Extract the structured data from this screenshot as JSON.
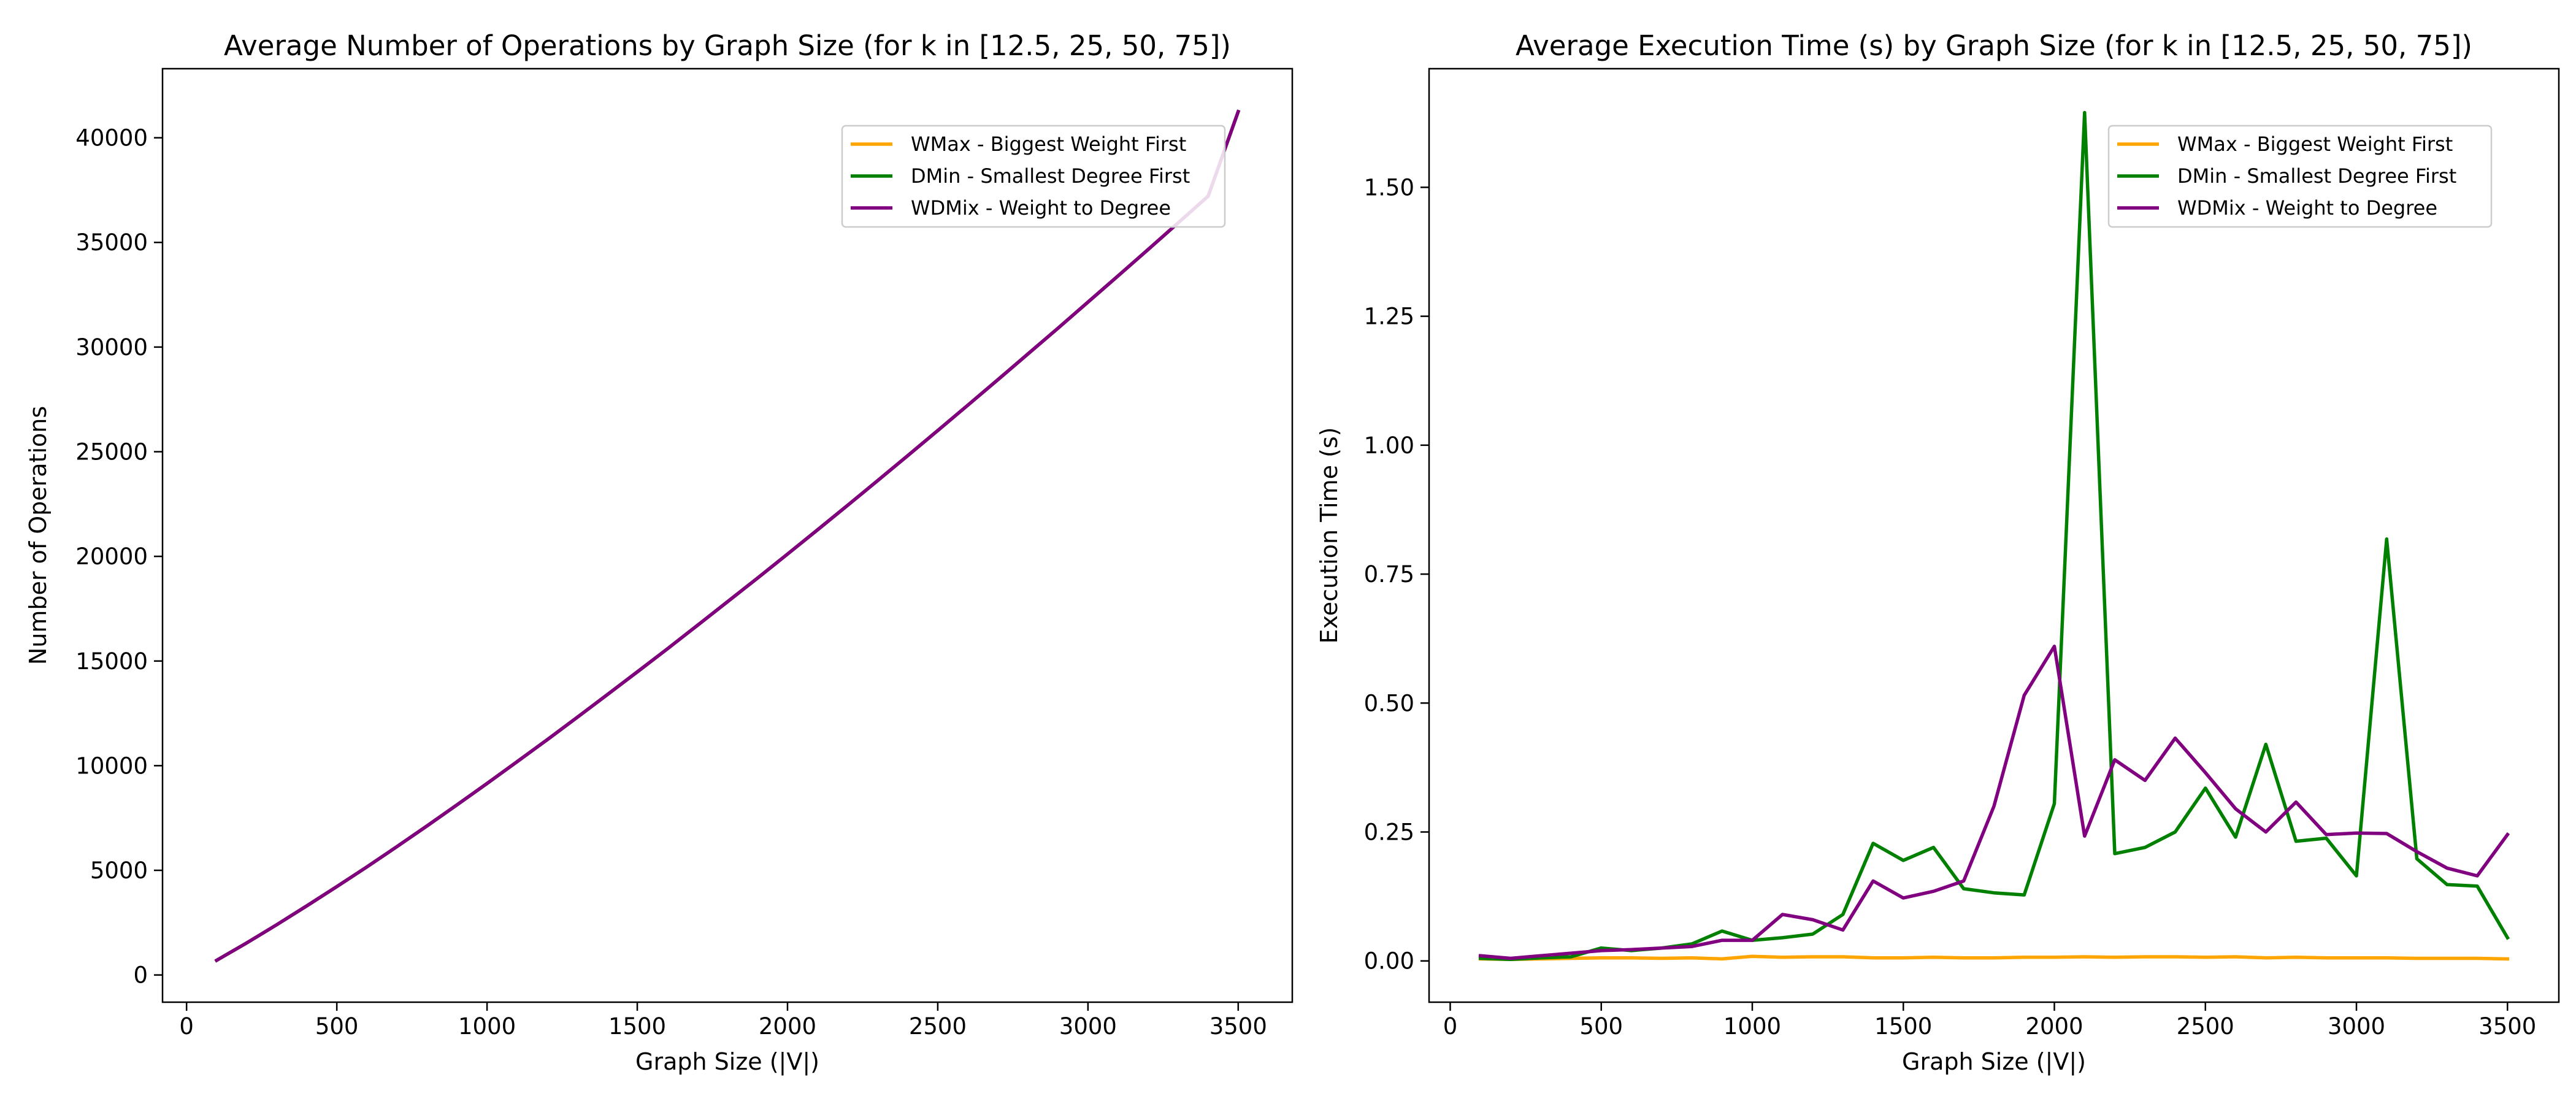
{
  "chart_data": [
    {
      "type": "line",
      "title": "Average Number of Operations by Graph Size (for k in [12.5, 25, 50, 75])",
      "xlabel": "Graph Size (|V|)",
      "ylabel": "Number of Operations",
      "xlim": [
        -80,
        3680
      ],
      "ylim": [
        -1300,
        43300
      ],
      "xticks": [
        0,
        500,
        1000,
        1500,
        2000,
        2500,
        3000,
        3500
      ],
      "yticks": [
        0,
        5000,
        10000,
        15000,
        20000,
        25000,
        30000,
        35000,
        40000
      ],
      "grid": false,
      "legend_position": "upper-right",
      "x": [
        100,
        200,
        300,
        400,
        500,
        600,
        700,
        800,
        900,
        1000,
        1100,
        1200,
        1300,
        1400,
        1500,
        1600,
        1700,
        1800,
        1900,
        2000,
        2100,
        2200,
        2300,
        2400,
        2500,
        2600,
        2700,
        2800,
        2900,
        3000,
        3100,
        3200,
        3300,
        3400,
        3500
      ],
      "series": [
        {
          "name": "WMax - Biggest Weight First",
          "color": "#ffa500",
          "values": [
            700,
            1530,
            2400,
            3300,
            4220,
            5160,
            6130,
            7120,
            8130,
            9150,
            10190,
            11240,
            12310,
            13390,
            14480,
            15580,
            16700,
            17830,
            18960,
            20110,
            21270,
            22440,
            23620,
            24810,
            26010,
            27220,
            28440,
            29670,
            30900,
            32150,
            33400,
            34660,
            35930,
            37210,
            41250
          ]
        },
        {
          "name": "DMin - Smallest Degree First",
          "color": "#008000",
          "values": [
            700,
            1530,
            2400,
            3300,
            4220,
            5160,
            6130,
            7120,
            8130,
            9150,
            10190,
            11240,
            12310,
            13390,
            14480,
            15580,
            16700,
            17830,
            18960,
            20110,
            21270,
            22440,
            23620,
            24810,
            26010,
            27220,
            28440,
            29670,
            30900,
            32150,
            33400,
            34660,
            35930,
            37210,
            41250
          ]
        },
        {
          "name": "WDMix - Weight to Degree",
          "color": "#800080",
          "values": [
            700,
            1530,
            2400,
            3300,
            4220,
            5160,
            6130,
            7120,
            8130,
            9150,
            10190,
            11240,
            12310,
            13390,
            14480,
            15580,
            16700,
            17830,
            18960,
            20110,
            21270,
            22440,
            23620,
            24810,
            26010,
            27220,
            28440,
            29670,
            30900,
            32150,
            33400,
            34660,
            35930,
            37210,
            41250
          ]
        }
      ]
    },
    {
      "type": "line",
      "title": "Average Execution Time (s) by Graph Size (for k in [12.5, 25, 50, 75])",
      "xlabel": "Graph Size (|V|)",
      "ylabel": "Execution Time (s)",
      "xlim": [
        -70,
        3670
      ],
      "ylim": [
        -0.08,
        1.73
      ],
      "xticks": [
        0,
        500,
        1000,
        1500,
        2000,
        2500,
        3000,
        3500
      ],
      "yticks": [
        0.0,
        0.25,
        0.5,
        0.75,
        1.0,
        1.25,
        1.5
      ],
      "ytick_labels": [
        "0.00",
        "0.25",
        "0.50",
        "0.75",
        "1.00",
        "1.25",
        "1.50"
      ],
      "grid": false,
      "legend_position": "upper-right",
      "x": [
        100,
        200,
        300,
        400,
        500,
        600,
        700,
        800,
        900,
        1000,
        1100,
        1200,
        1300,
        1400,
        1500,
        1600,
        1700,
        1800,
        1900,
        2000,
        2100,
        2200,
        2300,
        2400,
        2500,
        2600,
        2700,
        2800,
        2900,
        3000,
        3100,
        3200,
        3300,
        3400,
        3500
      ],
      "series": [
        {
          "name": "WMax - Biggest Weight First",
          "color": "#ffa500",
          "values": [
            0.004,
            0.003,
            0.004,
            0.005,
            0.006,
            0.006,
            0.005,
            0.006,
            0.004,
            0.009,
            0.007,
            0.008,
            0.008,
            0.006,
            0.006,
            0.007,
            0.006,
            0.006,
            0.007,
            0.007,
            0.008,
            0.007,
            0.008,
            0.008,
            0.007,
            0.008,
            0.006,
            0.007,
            0.006,
            0.006,
            0.006,
            0.005,
            0.005,
            0.005,
            0.004
          ]
        },
        {
          "name": "DMin - Smallest Degree First",
          "color": "#008000",
          "values": [
            0.005,
            0.003,
            0.006,
            0.008,
            0.025,
            0.02,
            0.025,
            0.033,
            0.058,
            0.04,
            0.045,
            0.052,
            0.09,
            0.228,
            0.195,
            0.22,
            0.14,
            0.132,
            0.128,
            0.305,
            1.645,
            0.208,
            0.22,
            0.25,
            0.335,
            0.24,
            0.42,
            0.232,
            0.238,
            0.165,
            0.818,
            0.198,
            0.148,
            0.145,
            0.045
          ]
        },
        {
          "name": "WDMix - Weight to Degree",
          "color": "#800080",
          "values": [
            0.01,
            0.005,
            0.01,
            0.015,
            0.02,
            0.022,
            0.025,
            0.028,
            0.04,
            0.04,
            0.09,
            0.08,
            0.06,
            0.155,
            0.122,
            0.135,
            0.155,
            0.3,
            0.515,
            0.61,
            0.242,
            0.39,
            0.35,
            0.432,
            0.365,
            0.295,
            0.25,
            0.308,
            0.245,
            0.248,
            0.247,
            0.212,
            0.18,
            0.165,
            0.245
          ]
        }
      ]
    }
  ]
}
